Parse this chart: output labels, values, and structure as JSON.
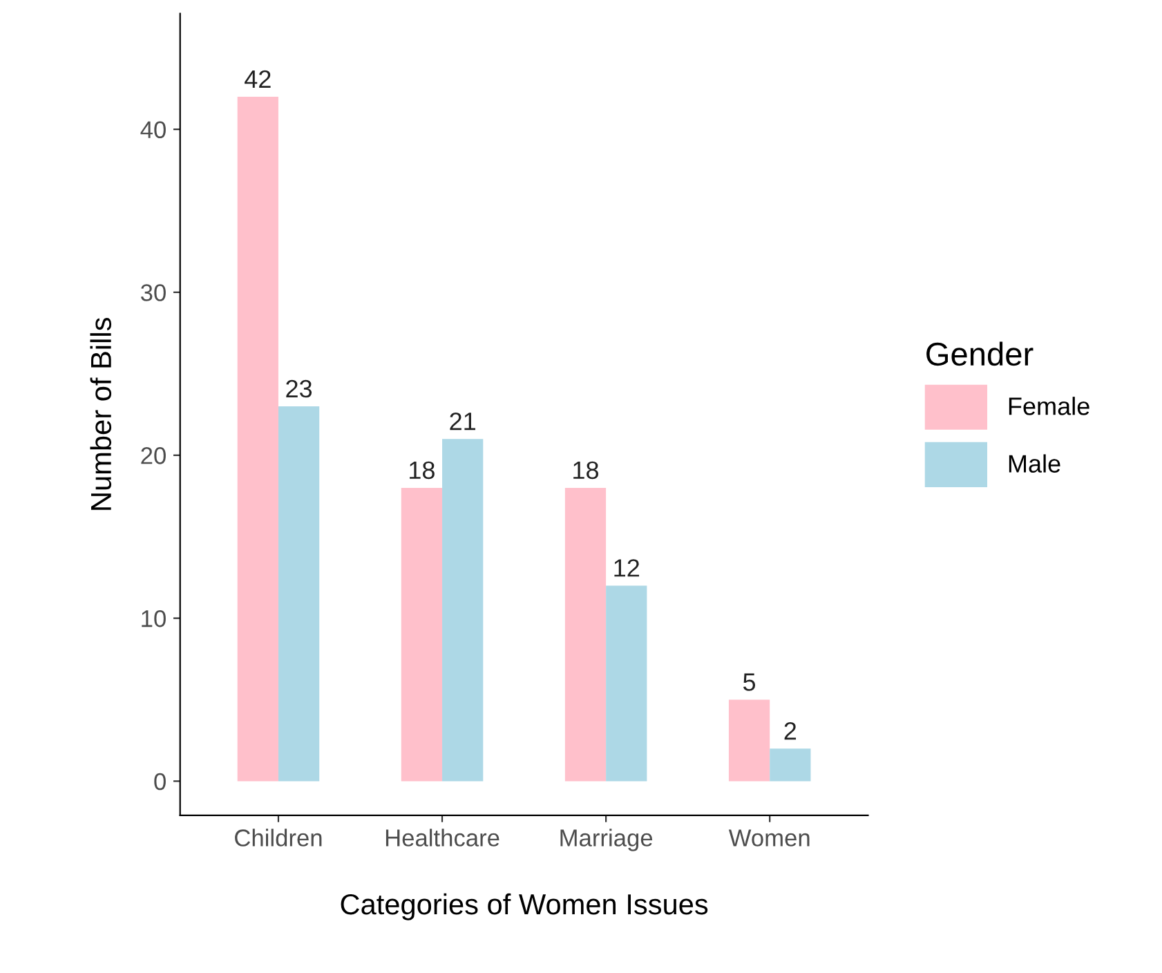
{
  "chart_data": {
    "type": "bar",
    "xlabel": "Categories of Women Issues",
    "ylabel": "Number of Bills",
    "legend_title": "Gender",
    "categories": [
      "Children",
      "Healthcare",
      "Marriage",
      "Women"
    ],
    "series": [
      {
        "name": "Female",
        "color": "#ffc0cb",
        "values": [
          42,
          18,
          18,
          5
        ]
      },
      {
        "name": "Male",
        "color": "#add8e6",
        "values": [
          23,
          21,
          12,
          2
        ]
      }
    ],
    "ylim": [
      -2.1,
      47.1
    ],
    "yticks": [
      0,
      10,
      20,
      30,
      40
    ],
    "grid": false,
    "legend": "right",
    "data_labels": true
  }
}
